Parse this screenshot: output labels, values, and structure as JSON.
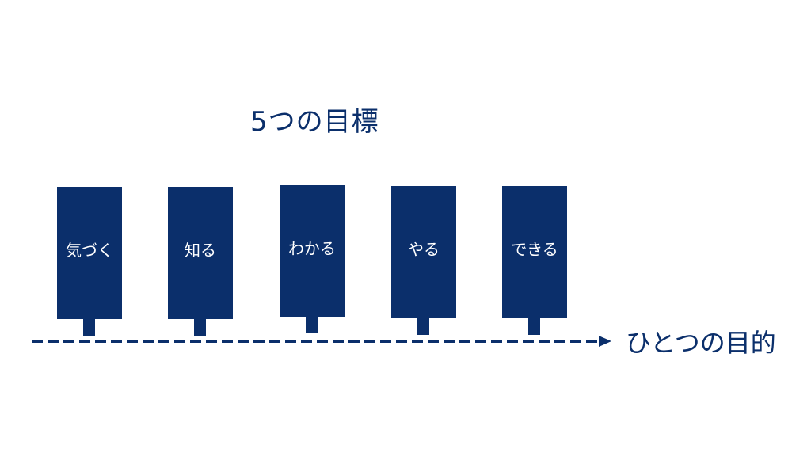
{
  "title": "5つの目標",
  "goals": [
    {
      "label": "気づく"
    },
    {
      "label": "知る"
    },
    {
      "label": "わかる"
    },
    {
      "label": "やる"
    },
    {
      "label": "できる"
    }
  ],
  "purpose": {
    "label": "ひとつの目的"
  },
  "colors": {
    "primary": "#0b2f6b",
    "background": "#ffffff",
    "block_text": "#ffffff"
  }
}
